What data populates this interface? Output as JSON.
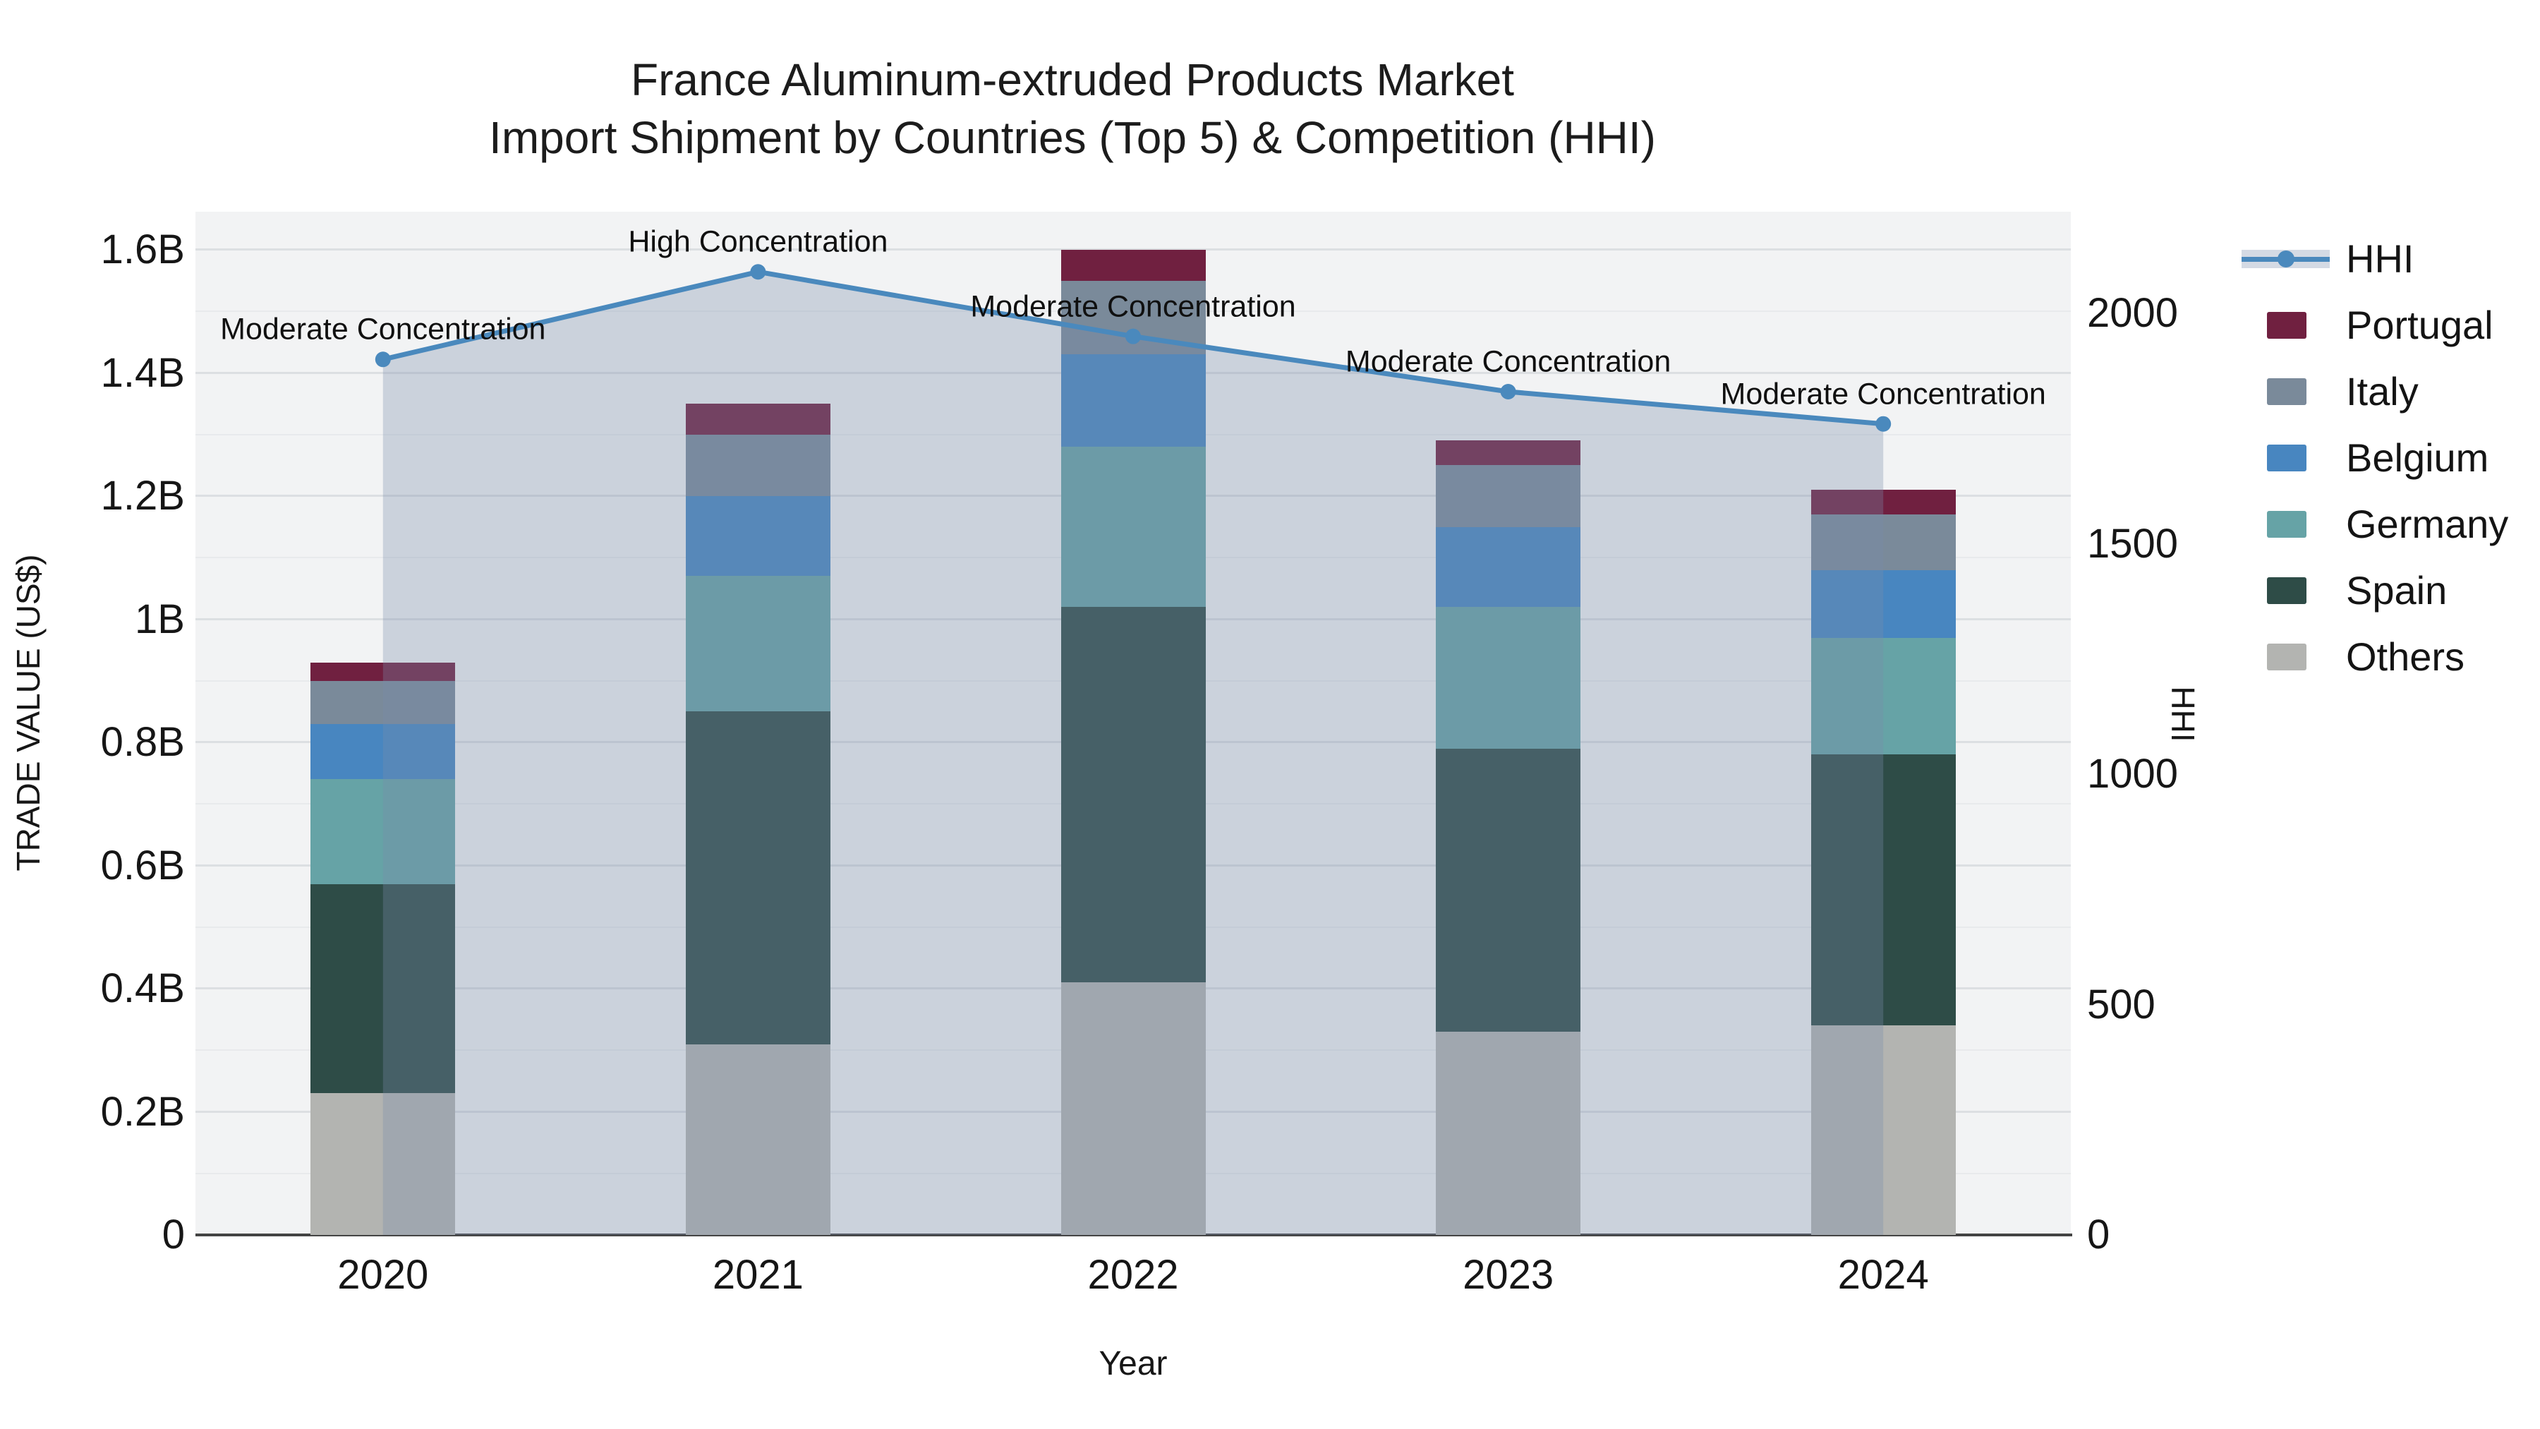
{
  "title": {
    "line1": "France Aluminum-extruded Products Market",
    "line2": "Import Shipment by Countries (Top 5) & Competition (HHI)"
  },
  "axes": {
    "x_title": "Year",
    "y_left_title": "TRADE VALUE (US$)",
    "y_right_title": "HHI",
    "y_left_ticks": [
      {
        "value": 0.0,
        "label": "0"
      },
      {
        "value": 0.2,
        "label": "0.2B"
      },
      {
        "value": 0.4,
        "label": "0.4B"
      },
      {
        "value": 0.6,
        "label": "0.6B"
      },
      {
        "value": 0.8,
        "label": "0.8B"
      },
      {
        "value": 1.0,
        "label": "1B"
      },
      {
        "value": 1.2,
        "label": "1.2B"
      },
      {
        "value": 1.4,
        "label": "1.4B"
      },
      {
        "value": 1.6,
        "label": "1.6B"
      }
    ],
    "y_right_ticks": [
      {
        "value": 0,
        "label": "0"
      },
      {
        "value": 500,
        "label": "500"
      },
      {
        "value": 1000,
        "label": "1000"
      },
      {
        "value": 1500,
        "label": "1500"
      },
      {
        "value": 2000,
        "label": "2000"
      }
    ],
    "y_left_range_B": [
      0,
      1.667
    ],
    "y_right_range": [
      0,
      2228
    ],
    "grid": "on"
  },
  "colors": {
    "plot_background": "#f2f3f4",
    "gridline": "#dcdfe2",
    "axis_line": "#444444",
    "hhi_line": "#4a89bd",
    "hhi_fill_band": "rgba(120,140,170,0.32)",
    "portugal": "#702040",
    "italy": "#7a8a9a",
    "belgium": "#4886c0",
    "germany": "#66a3a6",
    "spain": "#2e4c47",
    "others": "#b3b4b1",
    "text": "#161616"
  },
  "legend": [
    {
      "key": "hhi",
      "label": "HHI",
      "type": "line"
    },
    {
      "key": "portugal",
      "label": "Portugal",
      "type": "swatch"
    },
    {
      "key": "italy",
      "label": "Italy",
      "type": "swatch"
    },
    {
      "key": "belgium",
      "label": "Belgium",
      "type": "swatch"
    },
    {
      "key": "germany",
      "label": "Germany",
      "type": "swatch"
    },
    {
      "key": "spain",
      "label": "Spain",
      "type": "swatch"
    },
    {
      "key": "others",
      "label": "Others",
      "type": "swatch"
    }
  ],
  "chart_data": {
    "type": "bar+line",
    "title": "France Aluminum-extruded Products Market — Import Shipment by Countries (Top 5) & Competition (HHI)",
    "categories": [
      "2020",
      "2021",
      "2022",
      "2023",
      "2024"
    ],
    "values_unit": "billion US$",
    "stack_order_bottom_to_top": [
      "others",
      "spain",
      "germany",
      "belgium",
      "italy",
      "portugal"
    ],
    "series": [
      {
        "key": "others",
        "name": "Others",
        "values": [
          0.23,
          0.31,
          0.41,
          0.33,
          0.34
        ]
      },
      {
        "key": "spain",
        "name": "Spain",
        "values": [
          0.34,
          0.54,
          0.61,
          0.46,
          0.44
        ]
      },
      {
        "key": "germany",
        "name": "Germany",
        "values": [
          0.17,
          0.22,
          0.26,
          0.23,
          0.19
        ]
      },
      {
        "key": "belgium",
        "name": "Belgium",
        "values": [
          0.09,
          0.13,
          0.15,
          0.13,
          0.11
        ]
      },
      {
        "key": "italy",
        "name": "Italy",
        "values": [
          0.07,
          0.1,
          0.12,
          0.1,
          0.09
        ]
      },
      {
        "key": "portugal",
        "name": "Portugal",
        "values": [
          0.03,
          0.05,
          0.05,
          0.04,
          0.04
        ]
      }
    ],
    "bar_totals_B": [
      0.93,
      1.35,
      1.6,
      1.29,
      1.21
    ],
    "line": {
      "name": "HHI",
      "values": [
        1900,
        2090,
        1950,
        1830,
        1760
      ],
      "axis": "right",
      "fill": "tozeroy"
    },
    "annotations": [
      {
        "category": "2020",
        "text": "Moderate Concentration"
      },
      {
        "category": "2021",
        "text": "High Concentration"
      },
      {
        "category": "2022",
        "text": "Moderate Concentration"
      },
      {
        "category": "2023",
        "text": "Moderate Concentration"
      },
      {
        "category": "2024",
        "text": "Moderate Concentration"
      }
    ],
    "legend_position": "right"
  }
}
